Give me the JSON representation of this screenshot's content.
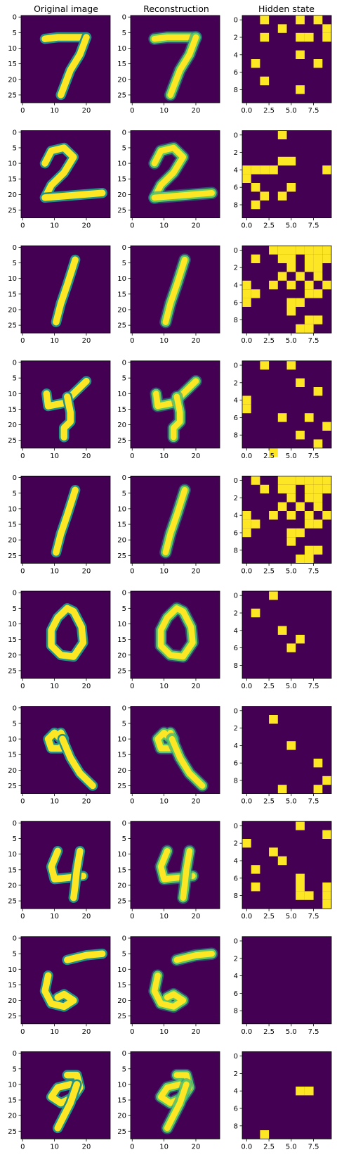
{
  "column_titles": [
    "Original image",
    "Reconstruction",
    "Hidden state"
  ],
  "colors": {
    "background": "#440154",
    "foreground": "#fde725",
    "mid": "#21918c",
    "light": "#5ec962"
  },
  "chart_data": {
    "type": "heatmap",
    "colormap": "viridis",
    "rows": 10,
    "image_axes": {
      "xlim": [
        -0.5,
        27.5
      ],
      "ylim_inverted": [
        27.5,
        -0.5
      ],
      "xticks": [
        0,
        10,
        20
      ],
      "xtick_labels": [
        "0",
        "10",
        "20"
      ],
      "yticks": [
        0,
        5,
        10,
        15,
        20,
        25
      ],
      "ytick_labels": [
        "0",
        "5",
        "10",
        "15",
        "20",
        "25"
      ]
    },
    "hidden_axes": {
      "xlim": [
        -0.5,
        9.5
      ],
      "ylim_inverted": [
        9.5,
        -0.5
      ],
      "xticks": [
        0,
        2.5,
        5,
        7.5
      ],
      "xtick_labels": [
        "0.0",
        "2.5",
        "5.0",
        "7.5"
      ],
      "yticks": [
        0,
        2,
        4,
        6,
        8
      ],
      "ytick_labels": [
        "0",
        "2",
        "4",
        "6",
        "8"
      ]
    },
    "digits": [
      "7",
      "2",
      "1",
      "4",
      "1",
      "0",
      "9",
      "4",
      "5",
      "9"
    ],
    "hidden_states": [
      [
        [
          0,
          2
        ],
        [
          0,
          6
        ],
        [
          0,
          8
        ],
        [
          1,
          4
        ],
        [
          1,
          9
        ],
        [
          2,
          2
        ],
        [
          2,
          6
        ],
        [
          2,
          7
        ],
        [
          2,
          9
        ],
        [
          4,
          6
        ],
        [
          5,
          1
        ],
        [
          5,
          8
        ],
        [
          7,
          2
        ],
        [
          8,
          6
        ]
      ],
      [
        [
          0,
          4
        ],
        [
          3,
          4
        ],
        [
          3,
          5
        ],
        [
          4,
          0
        ],
        [
          4,
          1
        ],
        [
          4,
          2
        ],
        [
          4,
          3
        ],
        [
          4,
          9
        ],
        [
          5,
          0
        ],
        [
          6,
          1
        ],
        [
          6,
          5
        ],
        [
          7,
          2
        ],
        [
          7,
          4
        ],
        [
          8,
          1
        ]
      ],
      [
        [
          0,
          3
        ],
        [
          0,
          4
        ],
        [
          0,
          5
        ],
        [
          0,
          6
        ],
        [
          0,
          7
        ],
        [
          0,
          8
        ],
        [
          0,
          9
        ],
        [
          0,
          10
        ],
        [
          1,
          1
        ],
        [
          1,
          4
        ],
        [
          1,
          5
        ],
        [
          1,
          7
        ],
        [
          1,
          8
        ],
        [
          1,
          9
        ],
        [
          2,
          5
        ],
        [
          2,
          7
        ],
        [
          2,
          8
        ],
        [
          3,
          4
        ],
        [
          3,
          6
        ],
        [
          3,
          8
        ],
        [
          4,
          0
        ],
        [
          4,
          3
        ],
        [
          4,
          5
        ],
        [
          4,
          7
        ],
        [
          4,
          9
        ],
        [
          5,
          0
        ],
        [
          5,
          1
        ],
        [
          5,
          7
        ],
        [
          5,
          8
        ],
        [
          6,
          0
        ],
        [
          6,
          5
        ],
        [
          6,
          6
        ],
        [
          7,
          5
        ],
        [
          8,
          7
        ],
        [
          8,
          8
        ],
        [
          9,
          6
        ],
        [
          9,
          7
        ]
      ],
      [
        [
          0,
          2
        ],
        [
          0,
          5
        ],
        [
          2,
          6
        ],
        [
          3,
          8
        ],
        [
          4,
          0
        ],
        [
          5,
          0
        ],
        [
          6,
          4
        ],
        [
          6,
          7
        ],
        [
          7,
          9
        ],
        [
          8,
          6
        ],
        [
          9,
          8
        ],
        [
          10,
          3
        ]
      ],
      [
        [
          0,
          1
        ],
        [
          0,
          4
        ],
        [
          0,
          5
        ],
        [
          0,
          6
        ],
        [
          0,
          7
        ],
        [
          0,
          8
        ],
        [
          0,
          9
        ],
        [
          0,
          10
        ],
        [
          1,
          2
        ],
        [
          1,
          4
        ],
        [
          1,
          5
        ],
        [
          1,
          7
        ],
        [
          1,
          8
        ],
        [
          1,
          9
        ],
        [
          2,
          5
        ],
        [
          2,
          7
        ],
        [
          2,
          8
        ],
        [
          3,
          4
        ],
        [
          3,
          6
        ],
        [
          3,
          8
        ],
        [
          4,
          0
        ],
        [
          4,
          3
        ],
        [
          4,
          5
        ],
        [
          4,
          7
        ],
        [
          4,
          9
        ],
        [
          5,
          0
        ],
        [
          5,
          1
        ],
        [
          5,
          7
        ],
        [
          5,
          8
        ],
        [
          6,
          0
        ],
        [
          6,
          5
        ],
        [
          6,
          6
        ],
        [
          7,
          5
        ],
        [
          8,
          7
        ],
        [
          8,
          8
        ],
        [
          9,
          6
        ],
        [
          9,
          7
        ]
      ],
      [
        [
          0,
          3
        ],
        [
          2,
          1
        ],
        [
          4,
          4
        ],
        [
          5,
          6
        ],
        [
          6,
          5
        ]
      ],
      [
        [
          1,
          3
        ],
        [
          4,
          5
        ],
        [
          6,
          8
        ],
        [
          8,
          9
        ],
        [
          9,
          4
        ],
        [
          9,
          8
        ]
      ],
      [
        [
          0,
          6
        ],
        [
          1,
          9
        ],
        [
          2,
          0
        ],
        [
          3,
          3
        ],
        [
          4,
          4
        ],
        [
          5,
          1
        ],
        [
          6,
          6
        ],
        [
          7,
          1
        ],
        [
          7,
          6
        ],
        [
          7,
          9
        ],
        [
          8,
          6
        ],
        [
          8,
          7
        ],
        [
          8,
          9
        ],
        [
          9,
          9
        ]
      ],
      [],
      [
        [
          4,
          6
        ],
        [
          4,
          7
        ],
        [
          9,
          2
        ]
      ]
    ]
  }
}
